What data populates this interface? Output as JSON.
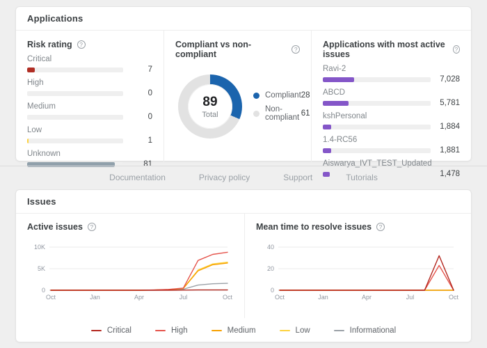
{
  "applications": {
    "title": "Applications",
    "risk": {
      "title": "Risk rating",
      "scale_max": 89,
      "items": [
        {
          "label": "Critical",
          "value": 7,
          "display": "7",
          "color": "#b02e24"
        },
        {
          "label": "High",
          "value": 0,
          "display": "0",
          "color": "#e5534b"
        },
        {
          "label": "Medium",
          "value": 0,
          "display": "0",
          "color": "#f7a000"
        },
        {
          "label": "Low",
          "value": 1,
          "display": "1",
          "color": "#fdd23e"
        },
        {
          "label": "Unknown",
          "value": 81,
          "display": "81",
          "color": "#90a0ab"
        }
      ]
    },
    "compliance": {
      "title": "Compliant vs non-compliant",
      "total": "89",
      "total_label": "Total",
      "items": [
        {
          "label": "Compliant",
          "value": 28,
          "display": "28",
          "color": "#1b64ad"
        },
        {
          "label": "Non-compliant",
          "value": 61,
          "display": "61",
          "color": "#e2e2e2"
        }
      ]
    },
    "top_apps": {
      "title": "Applications with most active issues",
      "scale_max": 24000,
      "bar_color": "#8456c8",
      "items": [
        {
          "label": "Ravi-2",
          "value": 7028,
          "display": "7,028"
        },
        {
          "label": "ABCD",
          "value": 5781,
          "display": "5,781"
        },
        {
          "label": "kshPersonal",
          "value": 1884,
          "display": "1,884"
        },
        {
          "label": "1.4-RC56",
          "value": 1881,
          "display": "1,881"
        },
        {
          "label": "Aiswarya_IVT_TEST_Updated",
          "value": 1478,
          "display": "1,478"
        }
      ]
    }
  },
  "footer": {
    "links": [
      "Documentation",
      "Privacy policy",
      "Support",
      "Tutorials"
    ]
  },
  "issues": {
    "title": "Issues",
    "legend": [
      {
        "label": "Critical",
        "color": "#b3261e"
      },
      {
        "label": "High",
        "color": "#e5534b"
      },
      {
        "label": "Medium",
        "color": "#f7a000"
      },
      {
        "label": "Low",
        "color": "#fdd23e"
      },
      {
        "label": "Informational",
        "color": "#9aa0a6"
      }
    ]
  },
  "chart_data": [
    {
      "id": "active_issues",
      "type": "line",
      "title": "Active issues",
      "x": [
        "Oct",
        "Nov",
        "Dec",
        "Jan",
        "Feb",
        "Mar",
        "Apr",
        "May",
        "Jun",
        "Jul",
        "Aug",
        "Sep",
        "Oct"
      ],
      "xtick_indices": [
        0,
        3,
        6,
        9,
        12
      ],
      "xtick_labels": [
        "Oct",
        "Jan",
        "Apr",
        "Jul",
        "Oct"
      ],
      "ylim": [
        0,
        10000
      ],
      "yticks": [
        {
          "v": 0,
          "label": "0"
        },
        {
          "v": 5000,
          "label": "5K"
        },
        {
          "v": 10000,
          "label": "10K"
        }
      ],
      "series": [
        {
          "name": "Critical",
          "color": "#b3261e",
          "values": [
            0,
            0,
            0,
            0,
            0,
            0,
            0,
            0,
            0,
            40,
            70,
            70,
            70
          ]
        },
        {
          "name": "High",
          "color": "#e5534b",
          "values": [
            0,
            0,
            0,
            0,
            0,
            0,
            0,
            60,
            200,
            500,
            6900,
            8300,
            8800
          ]
        },
        {
          "name": "Medium",
          "color": "#f7a000",
          "values": [
            0,
            0,
            0,
            0,
            0,
            0,
            0,
            50,
            150,
            420,
            4500,
            5900,
            6300
          ]
        },
        {
          "name": "Low",
          "color": "#fdd23e",
          "values": [
            0,
            0,
            0,
            0,
            0,
            0,
            0,
            50,
            160,
            450,
            4700,
            6100,
            6500
          ]
        },
        {
          "name": "Informational",
          "color": "#9aa0a6",
          "values": [
            0,
            0,
            0,
            0,
            0,
            0,
            0,
            0,
            60,
            250,
            1200,
            1500,
            1600
          ]
        }
      ]
    },
    {
      "id": "mean_time",
      "type": "line",
      "title": "Mean time to resolve issues",
      "x": [
        "Oct",
        "Nov",
        "Dec",
        "Jan",
        "Feb",
        "Mar",
        "Apr",
        "May",
        "Jun",
        "Jul",
        "Aug",
        "Sep",
        "Oct"
      ],
      "xtick_indices": [
        0,
        3,
        6,
        9,
        12
      ],
      "xtick_labels": [
        "Oct",
        "Jan",
        "Apr",
        "Jul",
        "Oct"
      ],
      "ylim": [
        0,
        40
      ],
      "yticks": [
        {
          "v": 0,
          "label": "0"
        },
        {
          "v": 20,
          "label": "20"
        },
        {
          "v": 40,
          "label": "40"
        }
      ],
      "series": [
        {
          "name": "Critical",
          "color": "#b3261e",
          "values": [
            0,
            0,
            0,
            0,
            0,
            0,
            0,
            0,
            0,
            0,
            0,
            32,
            0
          ]
        },
        {
          "name": "High",
          "color": "#e5534b",
          "values": [
            0,
            0,
            0,
            0,
            0,
            0,
            0,
            0,
            0,
            0,
            0,
            23,
            0
          ]
        },
        {
          "name": "Medium",
          "color": "#f7a000",
          "values": [
            0,
            0,
            0,
            0,
            0,
            0,
            0,
            0,
            0,
            0,
            0,
            0,
            0
          ]
        },
        {
          "name": "Low",
          "color": "#fdd23e",
          "values": [
            0,
            0,
            0,
            0,
            0,
            0,
            0,
            0,
            0,
            0,
            0,
            0,
            0
          ]
        },
        {
          "name": "Informational",
          "color": "#9aa0a6",
          "values": [
            0,
            0,
            0,
            0,
            0,
            0,
            0,
            0,
            0,
            0,
            0,
            0,
            0
          ]
        }
      ]
    }
  ]
}
